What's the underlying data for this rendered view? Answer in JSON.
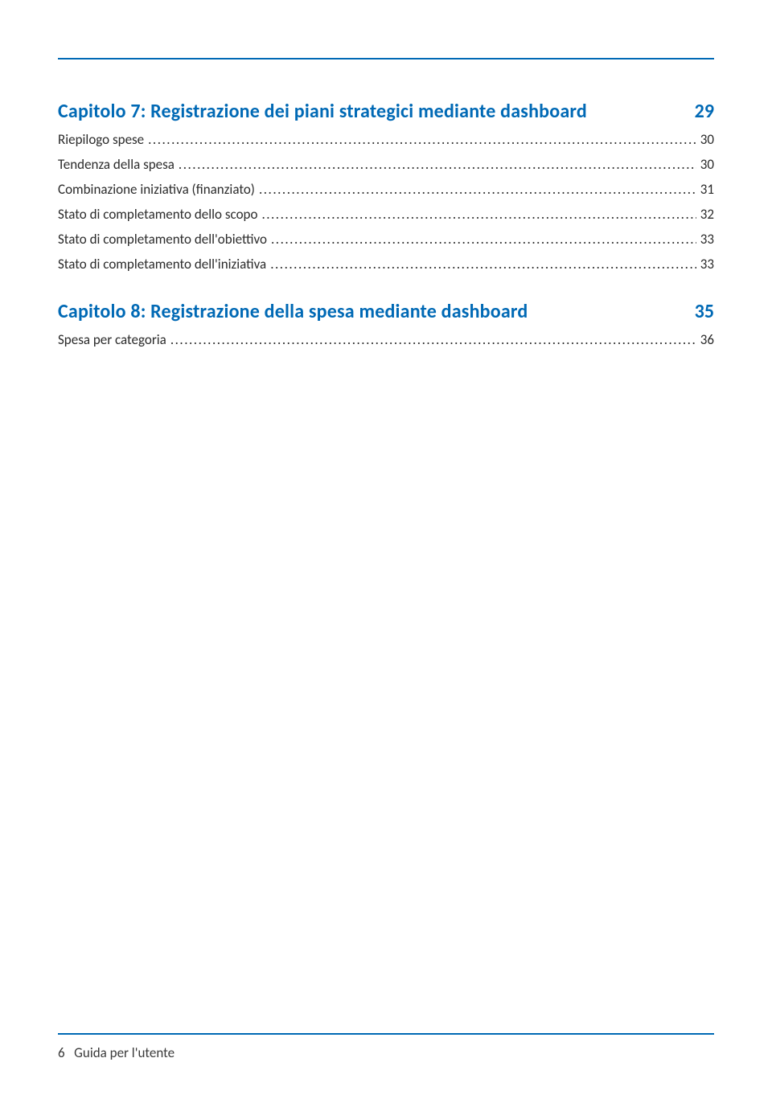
{
  "colors": {
    "accent": "#0069b5",
    "text": "#2b2b2b",
    "footer_text": "#3a3a3a",
    "background": "#ffffff"
  },
  "typography": {
    "chapter_fontsize": 24,
    "chapter_weight": 600,
    "entry_fontsize": 17,
    "footer_fontsize": 17,
    "font_family": "Segoe UI / Calibri"
  },
  "chapters": [
    {
      "title": "Capitolo 7: Registrazione dei piani strategici mediante dashboard",
      "page": "29",
      "entries": [
        {
          "label": "Riepilogo spese",
          "page": "30"
        },
        {
          "label": "Tendenza della spesa",
          "page": "30"
        },
        {
          "label": "Combinazione iniziativa (finanziato)",
          "page": "31"
        },
        {
          "label": "Stato di completamento dello scopo",
          "page": "32"
        },
        {
          "label": "Stato di completamento dell'obiettivo",
          "page": "33"
        },
        {
          "label": "Stato di completamento dell'iniziativa",
          "page": "33"
        }
      ]
    },
    {
      "title": "Capitolo 8: Registrazione della spesa mediante dashboard",
      "page": "35",
      "entries": [
        {
          "label": "Spesa per categoria",
          "page": "36"
        }
      ]
    }
  ],
  "footer": {
    "page_number": "6",
    "label": "Guida per l'utente"
  }
}
